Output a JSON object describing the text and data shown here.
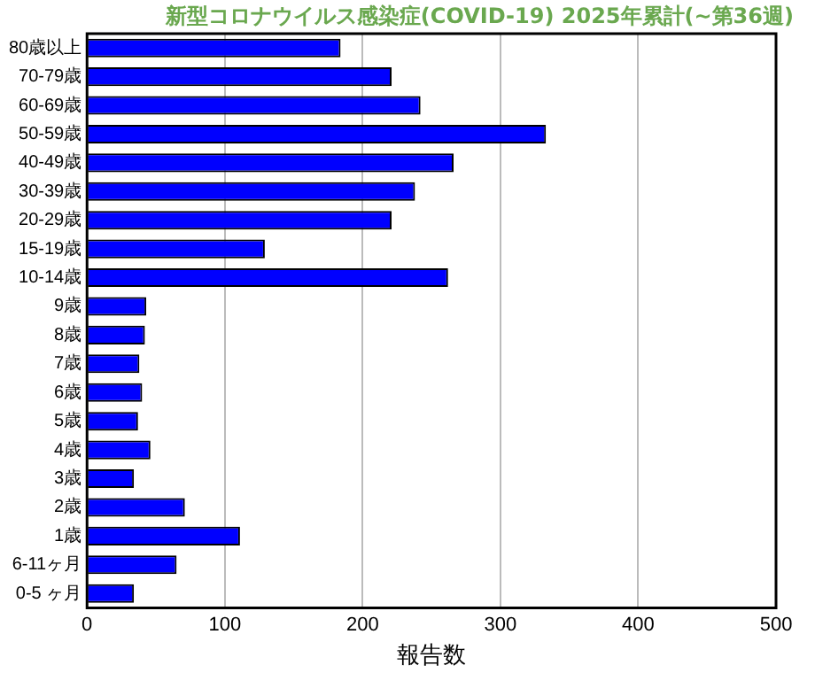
{
  "chart_data": {
    "type": "bar",
    "orientation": "horizontal",
    "title": "新型コロナウイルス感染症(COVID-19) 2025年累計(~第36週)",
    "xlabel": "報告数",
    "categories": [
      "80歳以上",
      "70-79歳",
      "60-69歳",
      "50-59歳",
      "40-49歳",
      "30-39歳",
      "20-29歳",
      "15-19歳",
      "10-14歳",
      "9歳",
      "8歳",
      "7歳",
      "6歳",
      "5歳",
      "4歳",
      "3歳",
      "2歳",
      "1歳",
      "6-11ヶ月",
      "0-5 ヶ月"
    ],
    "values": [
      184,
      221,
      242,
      333,
      266,
      238,
      221,
      129,
      262,
      43,
      42,
      38,
      40,
      37,
      46,
      34,
      71,
      111,
      65,
      34
    ],
    "color": "#0000ff",
    "xlim": [
      0,
      500
    ],
    "xticks": [
      0,
      100,
      200,
      300,
      400,
      500
    ],
    "grid": "x",
    "legend": false
  }
}
